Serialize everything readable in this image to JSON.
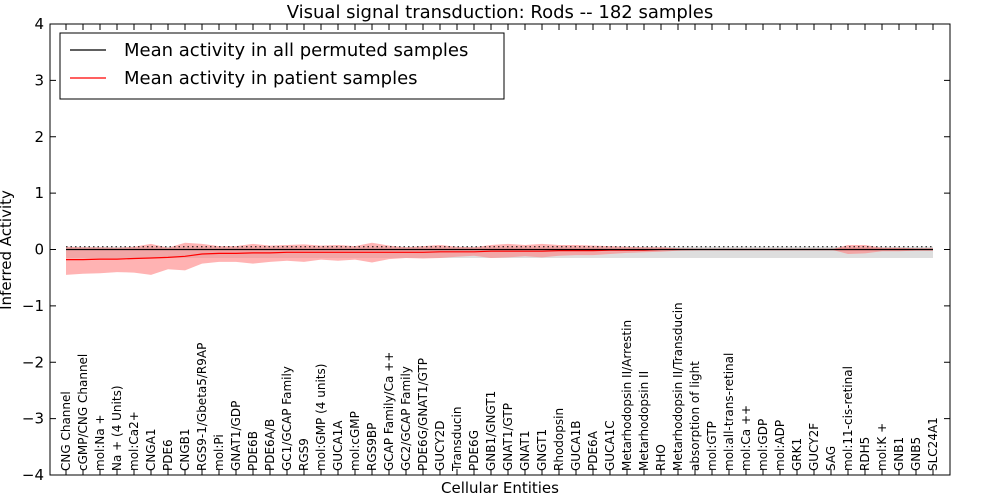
{
  "chart_data": {
    "type": "line",
    "title": "Visual signal transduction: Rods -- 182 samples",
    "xlabel": "Cellular Entities",
    "ylabel": "Inferred Activity",
    "ylim": [
      -4,
      4
    ],
    "yticks": [
      -4,
      -3,
      -2,
      -1,
      0,
      1,
      2,
      3,
      4
    ],
    "ytick_labels": [
      "−4",
      "−3",
      "−2",
      "−1",
      "0",
      "1",
      "2",
      "3",
      "4"
    ],
    "categories": [
      "CNG Channel",
      "cGMP/CNG Channel",
      "mol:Na +",
      "Na + (4 Units)",
      "mol:Ca2+",
      "CNGA1",
      "PDE6",
      "CNGB1",
      "RGS9-1/Gbeta5/R9AP",
      "mol:Pi",
      "GNAT1/GDP",
      "PDE6B",
      "PDE6A/B",
      "GC1/GCAP Family",
      "RGS9",
      "mol:GMP (4 units)",
      "GUCA1A",
      "mol:cGMP",
      "RGS9BP",
      "GCAP Family/Ca ++",
      "GC2/GCAP Family",
      "PDE6G/GNAT1/GTP",
      "GUCY2D",
      "Transducin",
      "PDE6G",
      "GNB1/GNGT1",
      "GNAT1/GTP",
      "GNAT1",
      "GNGT1",
      "Rhodopsin",
      "GUCA1B",
      "PDE6A",
      "GUCA1C",
      "Metarhodopsin II/Arrestin",
      "Metarhodopsin II",
      "RHO",
      "Metarhodopsin II/Transducin",
      "absorption of light",
      "mol:GTP",
      "mol:all-trans-retinal",
      "mol:Ca ++",
      "mol:GDP",
      "mol:ADP",
      "GRK1",
      "GUCY2F",
      "SAG",
      "mol:11-cis-retinal",
      "RDH5",
      "mol:K +",
      "GNB1",
      "GNB5",
      "SLC24A1"
    ],
    "series": [
      {
        "name": "Mean activity in all permuted samples",
        "color": "#000000",
        "values": [
          0.0,
          0.0,
          0.0,
          0.0,
          0.0,
          0.0,
          0.0,
          0.0,
          0.0,
          0.0,
          0.0,
          0.0,
          0.0,
          0.0,
          0.0,
          0.0,
          0.0,
          0.0,
          0.0,
          0.0,
          0.0,
          0.0,
          0.0,
          0.0,
          0.0,
          0.0,
          0.0,
          0.0,
          0.0,
          0.0,
          0.0,
          0.0,
          0.0,
          0.0,
          0.0,
          0.0,
          0.0,
          0.0,
          0.0,
          0.0,
          0.0,
          0.0,
          0.0,
          0.0,
          0.0,
          0.0,
          0.0,
          0.0,
          0.0,
          0.0,
          0.0,
          0.0
        ],
        "band_upper": [
          0.05,
          0.05,
          0.05,
          0.05,
          0.05,
          0.05,
          0.05,
          0.05,
          0.05,
          0.05,
          0.05,
          0.05,
          0.05,
          0.05,
          0.05,
          0.05,
          0.05,
          0.05,
          0.05,
          0.05,
          0.05,
          0.05,
          0.05,
          0.05,
          0.05,
          0.05,
          0.05,
          0.05,
          0.05,
          0.05,
          0.05,
          0.05,
          0.05,
          0.05,
          0.05,
          0.05,
          0.05,
          0.05,
          0.05,
          0.05,
          0.05,
          0.05,
          0.05,
          0.05,
          0.05,
          0.05,
          0.05,
          0.05,
          0.05,
          0.05,
          0.05,
          0.05
        ],
        "band_lower": [
          -0.15,
          -0.15,
          -0.15,
          -0.15,
          -0.15,
          -0.15,
          -0.15,
          -0.15,
          -0.15,
          -0.15,
          -0.15,
          -0.15,
          -0.15,
          -0.15,
          -0.15,
          -0.15,
          -0.15,
          -0.15,
          -0.15,
          -0.15,
          -0.15,
          -0.15,
          -0.15,
          -0.15,
          -0.15,
          -0.15,
          -0.15,
          -0.15,
          -0.15,
          -0.15,
          -0.15,
          -0.15,
          -0.15,
          -0.15,
          -0.15,
          -0.15,
          -0.15,
          -0.15,
          -0.15,
          -0.15,
          -0.15,
          -0.15,
          -0.15,
          -0.15,
          -0.15,
          -0.15,
          -0.15,
          -0.15,
          -0.15,
          -0.15,
          -0.15,
          -0.15
        ]
      },
      {
        "name": "Mean activity in patient samples",
        "color": "#ff0000",
        "values": [
          -0.18,
          -0.18,
          -0.17,
          -0.17,
          -0.16,
          -0.15,
          -0.14,
          -0.12,
          -0.08,
          -0.07,
          -0.07,
          -0.06,
          -0.06,
          -0.05,
          -0.05,
          -0.05,
          -0.05,
          -0.05,
          -0.05,
          -0.05,
          -0.05,
          -0.05,
          -0.04,
          -0.04,
          -0.04,
          -0.03,
          -0.03,
          -0.03,
          -0.03,
          -0.02,
          -0.02,
          -0.02,
          -0.01,
          -0.01,
          -0.01,
          0.0,
          0.0,
          0.0,
          0.0,
          0.0,
          0.0,
          0.0,
          0.0,
          0.0,
          0.0,
          0.0,
          0.0,
          0.0,
          0.0,
          0.0,
          0.0,
          0.0
        ],
        "band_upper": [
          0.05,
          0.04,
          0.04,
          0.03,
          0.05,
          0.1,
          0.03,
          0.12,
          0.1,
          0.06,
          0.06,
          0.1,
          0.07,
          0.08,
          0.09,
          0.07,
          0.08,
          0.06,
          0.12,
          0.07,
          0.04,
          0.06,
          0.08,
          0.05,
          0.04,
          0.08,
          0.1,
          0.08,
          0.1,
          0.08,
          0.08,
          0.07,
          0.06,
          0.05,
          0.04,
          0.04,
          0.02,
          0.01,
          0.0,
          0.0,
          0.0,
          0.0,
          0.0,
          0.0,
          0.0,
          0.0,
          0.08,
          0.08,
          0.03,
          0.03,
          0.02,
          0.02
        ],
        "band_lower": [
          -0.45,
          -0.43,
          -0.42,
          -0.4,
          -0.41,
          -0.45,
          -0.35,
          -0.37,
          -0.25,
          -0.22,
          -0.22,
          -0.25,
          -0.22,
          -0.2,
          -0.22,
          -0.18,
          -0.2,
          -0.18,
          -0.23,
          -0.17,
          -0.15,
          -0.16,
          -0.15,
          -0.13,
          -0.11,
          -0.15,
          -0.14,
          -0.12,
          -0.14,
          -0.11,
          -0.1,
          -0.1,
          -0.08,
          -0.06,
          -0.05,
          -0.04,
          -0.02,
          -0.01,
          0.0,
          0.0,
          0.0,
          0.0,
          0.0,
          0.0,
          0.0,
          0.0,
          -0.08,
          -0.07,
          -0.03,
          -0.03,
          -0.02,
          -0.02
        ]
      }
    ],
    "legend": "top-left",
    "grid": false
  },
  "style": {
    "patient_band_color": "#ff8080",
    "permuted_band_color": "#c8c8c8",
    "axis_color": "#000000"
  }
}
